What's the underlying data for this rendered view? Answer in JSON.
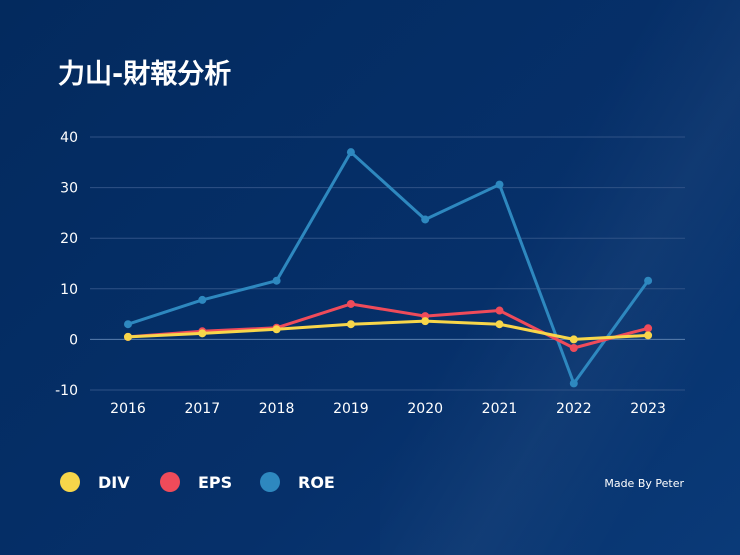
{
  "title": "力山-財報分析",
  "credit": "Made By Peter",
  "chart_data": {
    "type": "line",
    "title": "力山-財報分析",
    "categories": [
      "2016",
      "2017",
      "2018",
      "2019",
      "2020",
      "2021",
      "2022",
      "2023"
    ],
    "ylim": [
      -10,
      40
    ],
    "yticks": [
      -10,
      0,
      10,
      20,
      30,
      40
    ],
    "grid": true,
    "legend_position": "bottom-left",
    "series": [
      {
        "name": "DIV",
        "color": "#f7d64a",
        "values": [
          0.5,
          1.2,
          2.0,
          3.0,
          3.6,
          3.0,
          0.0,
          0.8
        ]
      },
      {
        "name": "EPS",
        "color": "#ef4b5a",
        "values": [
          0.5,
          1.6,
          2.3,
          7.0,
          4.6,
          5.7,
          -1.7,
          2.2
        ]
      },
      {
        "name": "ROE",
        "color": "#2e88bf",
        "values": [
          3.0,
          7.8,
          11.6,
          37.0,
          23.7,
          30.6,
          -8.7,
          11.6
        ]
      }
    ]
  }
}
